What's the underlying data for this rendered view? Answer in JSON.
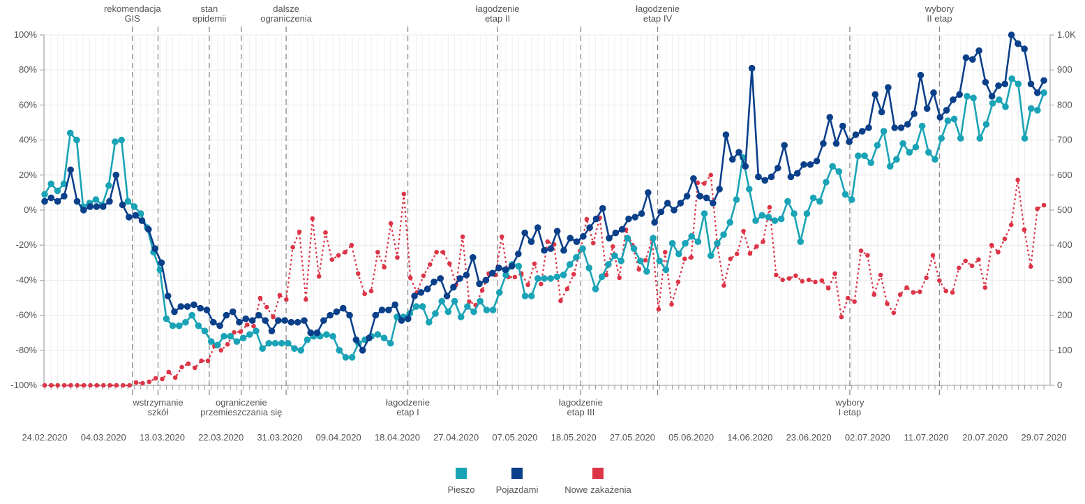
{
  "chart_data": {
    "type": "line",
    "title": "",
    "x_start_date": "24.02.2020",
    "x_end_date": "29.07.2020",
    "x_tick_labels": [
      "24.02.2020",
      "04.03.2020",
      "13.03.2020",
      "22.03.2020",
      "31.03.2020",
      "09.04.2020",
      "18.04.2020",
      "27.04.2020",
      "07.05.2020",
      "18.05.2020",
      "27.05.2020",
      "05.06.2020",
      "14.06.2020",
      "23.06.2020",
      "02.07.2020",
      "11.07.2020",
      "20.07.2020",
      "29.07.2020"
    ],
    "y_left": {
      "ticks": [
        "100%",
        "80%",
        "60%",
        "40%",
        "20%",
        "0%",
        "-20%",
        "-40%",
        "-60%",
        "-80%",
        "-100%"
      ],
      "ylim": [
        -100,
        100
      ],
      "unit": "%"
    },
    "y_right": {
      "ticks": [
        "1.0K",
        "900",
        "800",
        "700",
        "600",
        "500",
        "400",
        "300",
        "200",
        "100",
        "0"
      ],
      "ylim": [
        0,
        1000
      ]
    },
    "grid": true,
    "legend_position": "bottom",
    "series": [
      {
        "name": "Pieszo",
        "color": "#1aa3b6",
        "axis": "left",
        "style": "solid",
        "values": [
          9,
          15,
          11,
          15,
          44,
          40,
          2,
          4,
          6,
          3,
          14,
          39,
          40,
          5,
          2,
          -2,
          -10,
          -24,
          -34,
          -62,
          -66,
          -66,
          -64,
          -60,
          -66,
          -69,
          -75,
          -77,
          -72,
          -72,
          -75,
          -73,
          -71,
          -69,
          -79,
          -76,
          -76,
          -76,
          -76,
          -79,
          -80,
          -74,
          -72,
          -72,
          -71,
          -72,
          -80,
          -84,
          -84,
          -76,
          -74,
          -72,
          -71,
          -73,
          -76,
          -61,
          -61,
          -59,
          -55,
          -55,
          -64,
          -59,
          -52,
          -58,
          -52,
          -61,
          -55,
          -58,
          -52,
          -57,
          -57,
          -47,
          -37,
          -31,
          -32,
          -49,
          -49,
          -39,
          -39,
          -39,
          -38,
          -37,
          -31,
          -27,
          -22,
          -33,
          -45,
          -38,
          -31,
          -26,
          -29,
          -16,
          -22,
          -29,
          -35,
          -16,
          -29,
          -34,
          -19,
          -25,
          -19,
          -15,
          -18,
          -2,
          -26,
          -19,
          -14,
          -7,
          6,
          30,
          12,
          -6,
          -3,
          -4,
          -6,
          -5,
          5,
          -2,
          -18,
          -2,
          7,
          5,
          16,
          25,
          22,
          9,
          6,
          31,
          31,
          27,
          37,
          45,
          25,
          29,
          38,
          33,
          36,
          48,
          33,
          29,
          41,
          51,
          52,
          41,
          65,
          64,
          41,
          49,
          61,
          63,
          59,
          75,
          72,
          41,
          58,
          57,
          67
        ]
      },
      {
        "name": "Pojazdami",
        "color": "#0a3f8a",
        "axis": "left",
        "style": "solid",
        "values": [
          5,
          7,
          5,
          8,
          23,
          5,
          0,
          2,
          2,
          2,
          5,
          20,
          3,
          -4,
          -3,
          -6,
          -11,
          -22,
          -30,
          -49,
          -58,
          -55,
          -55,
          -54,
          -56,
          -57,
          -64,
          -66,
          -60,
          -58,
          -64,
          -62,
          -63,
          -60,
          -63,
          -69,
          -63,
          -63,
          -64,
          -64,
          -63,
          -70,
          -70,
          -63,
          -60,
          -58,
          -56,
          -60,
          -74,
          -80,
          -73,
          -60,
          -57,
          -57,
          -54,
          -63,
          -62,
          -49,
          -47,
          -45,
          -41,
          -39,
          -49,
          -44,
          -39,
          -37,
          -27,
          -42,
          -40,
          -36,
          -33,
          -34,
          -32,
          -25,
          -13,
          -18,
          -10,
          -23,
          -22,
          -12,
          -23,
          -16,
          -18,
          -15,
          -10,
          -5,
          1,
          -16,
          -13,
          -11,
          -5,
          -4,
          -2,
          10,
          -7,
          -1,
          4,
          0,
          4,
          8,
          18,
          8,
          7,
          4,
          12,
          43,
          29,
          33,
          25,
          81,
          19,
          17,
          19,
          24,
          37,
          19,
          21,
          26,
          26,
          28,
          38,
          53,
          38,
          48,
          39,
          43,
          45,
          47,
          66,
          56,
          70,
          47,
          47,
          49,
          55,
          77,
          58,
          67,
          53,
          57,
          63,
          66,
          87,
          86,
          91,
          73,
          65,
          71,
          72,
          100,
          95,
          92,
          72,
          67,
          74
        ]
      },
      {
        "name": "Nowe zakażenia",
        "color": "#dc3547",
        "axis": "right",
        "style": "dotted",
        "values": [
          0,
          0,
          0,
          0,
          0,
          0,
          0,
          0,
          0,
          0,
          0,
          0,
          0,
          0,
          8,
          6,
          10,
          20,
          18,
          38,
          22,
          52,
          62,
          50,
          70,
          70,
          112,
          100,
          117,
          151,
          153,
          173,
          169,
          249,
          223,
          195,
          257,
          245,
          394,
          438,
          245,
          476,
          311,
          436,
          359,
          371,
          380,
          400,
          319,
          261,
          269,
          380,
          337,
          462,
          365,
          546,
          307,
          265,
          313,
          345,
          380,
          380,
          347,
          287,
          424,
          239,
          229,
          271,
          319,
          315,
          424,
          309,
          309,
          319,
          287,
          347,
          289,
          410,
          402,
          241,
          275,
          317,
          384,
          474,
          406,
          478,
          315,
          396,
          307,
          444,
          400,
          331,
          357,
          416,
          217,
          380,
          231,
          295,
          361,
          365,
          578,
          576,
          600,
          400,
          285,
          361,
          375,
          440,
          376,
          396,
          410,
          508,
          315,
          301,
          305,
          313,
          297,
          301,
          295,
          299,
          277,
          319,
          195,
          249,
          239,
          384,
          371,
          259,
          315,
          233,
          207,
          259,
          279,
          265,
          267,
          307,
          371,
          299,
          269,
          265,
          335,
          355,
          341,
          359,
          279,
          400,
          380,
          418,
          458,
          586,
          444,
          339,
          504,
          514
        ]
      }
    ],
    "events": [
      {
        "date": "08.03.2020",
        "label": [
          "rekomendacja",
          "GIS"
        ],
        "position": "top"
      },
      {
        "date": "12.03.2020",
        "label": [
          "wstrzymanie",
          "szkół"
        ],
        "position": "bottom"
      },
      {
        "date": "20.03.2020",
        "label": [
          "stan",
          "epidemii"
        ],
        "position": "top"
      },
      {
        "date": "25.03.2020",
        "label": [
          "ograniczenie",
          "przemieszczania się"
        ],
        "position": "bottom"
      },
      {
        "date": "01.04.2020",
        "label": [
          "dalsze",
          "ograniczenia"
        ],
        "position": "top"
      },
      {
        "date": "20.04.2020",
        "label": [
          "łagodzenie",
          "etap I"
        ],
        "position": "bottom"
      },
      {
        "date": "04.05.2020",
        "label": [
          "łagodzenie",
          "etap II"
        ],
        "position": "top"
      },
      {
        "date": "17.05.2020",
        "label": [
          "łagodzenie",
          "etap III"
        ],
        "position": "bottom"
      },
      {
        "date": "29.05.2020",
        "label": [
          "łagodzenie",
          "etap IV"
        ],
        "position": "top"
      },
      {
        "date": "28.06.2020",
        "label": [
          "wybory",
          "I etap"
        ],
        "position": "bottom"
      },
      {
        "date": "12.07.2020",
        "label": [
          "wybory",
          "II etap"
        ],
        "position": "top"
      }
    ]
  }
}
